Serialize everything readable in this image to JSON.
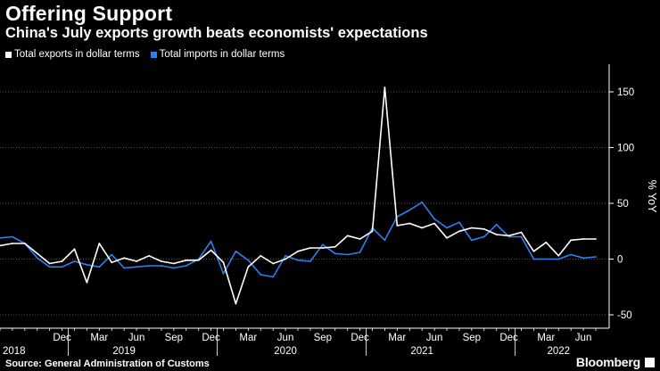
{
  "header": {
    "title": "Offering Support",
    "subtitle": "China's July exports growth beats economists' expectations"
  },
  "footer": {
    "source": "Source: General Administration of Customs",
    "brand": "Bloomberg"
  },
  "colors": {
    "background": "#000000",
    "exports": "#ffffff",
    "imports": "#2f7ff0"
  },
  "chart_data": {
    "type": "line",
    "title": "Offering Support",
    "subtitle": "China's July exports growth beats economists' expectations",
    "ylabel": "% YoY",
    "ylim": [
      -50,
      150
    ],
    "yticks": [
      -50,
      0,
      50,
      100,
      150
    ],
    "grid": "horizontal dotted",
    "legend": "top-left",
    "x": [
      "2018-07",
      "2018-08",
      "2018-09",
      "2018-10",
      "2018-11",
      "2018-12",
      "2019-01",
      "2019-02",
      "2019-03",
      "2019-04",
      "2019-05",
      "2019-06",
      "2019-07",
      "2019-08",
      "2019-09",
      "2019-10",
      "2019-11",
      "2019-12",
      "2020-01",
      "2020-02",
      "2020-03",
      "2020-04",
      "2020-05",
      "2020-06",
      "2020-07",
      "2020-08",
      "2020-09",
      "2020-10",
      "2020-11",
      "2020-12",
      "2021-01",
      "2021-02",
      "2021-03",
      "2021-04",
      "2021-05",
      "2021-06",
      "2021-07",
      "2021-08",
      "2021-09",
      "2021-10",
      "2021-11",
      "2021-12",
      "2022-01",
      "2022-02",
      "2022-03",
      "2022-04",
      "2022-05",
      "2022-06",
      "2022-07"
    ],
    "x_tick_labels": [
      {
        "label": "Dec",
        "x": "2018-12"
      },
      {
        "label": "Mar",
        "x": "2019-03"
      },
      {
        "label": "Jun",
        "x": "2019-06"
      },
      {
        "label": "Sep",
        "x": "2019-09"
      },
      {
        "label": "Dec",
        "x": "2019-12"
      },
      {
        "label": "Mar",
        "x": "2020-03"
      },
      {
        "label": "Jun",
        "x": "2020-06"
      },
      {
        "label": "Sep",
        "x": "2020-09"
      },
      {
        "label": "Dec",
        "x": "2020-12"
      },
      {
        "label": "Mar",
        "x": "2021-03"
      },
      {
        "label": "Jun",
        "x": "2021-06"
      },
      {
        "label": "Sep",
        "x": "2021-09"
      },
      {
        "label": "Dec",
        "x": "2021-12"
      },
      {
        "label": "Mar",
        "x": "2022-03"
      },
      {
        "label": "Jun",
        "x": "2022-06"
      }
    ],
    "year_labels": [
      {
        "label": "2018",
        "x": "2018-07"
      },
      {
        "label": "2019",
        "x": "2019-05"
      },
      {
        "label": "2020",
        "x": "2020-06"
      },
      {
        "label": "2021",
        "x": "2021-05"
      },
      {
        "label": "2022",
        "x": "2022-04"
      }
    ],
    "series": [
      {
        "name": "Total exports in dollar terms",
        "color": "#ffffff",
        "values": [
          12,
          14,
          14,
          5,
          -4,
          -2,
          9,
          -21,
          14,
          -3,
          1,
          -2,
          3,
          -2,
          -4,
          -1,
          -1,
          8,
          -3,
          -40,
          -7,
          3,
          -4,
          0,
          7,
          10,
          10,
          11,
          21,
          18,
          25,
          154,
          30,
          32,
          28,
          32,
          19,
          25,
          28,
          27,
          22,
          21,
          24,
          7,
          15,
          3,
          17,
          18,
          18
        ]
      },
      {
        "name": "Total imports in dollar terms",
        "color": "#2f7ff0",
        "values": [
          19,
          20,
          14,
          1,
          -7,
          -7,
          -2,
          -5,
          -7,
          4,
          -8,
          -7,
          -6,
          -6,
          -8,
          -6,
          0,
          16,
          -13,
          7,
          -1,
          -14,
          -16,
          3,
          -1,
          -2,
          13,
          5,
          4,
          6,
          28,
          17,
          38,
          44,
          51,
          36,
          28,
          33,
          17,
          20,
          31,
          20,
          20,
          0,
          0,
          0,
          4,
          1,
          2
        ]
      }
    ]
  }
}
